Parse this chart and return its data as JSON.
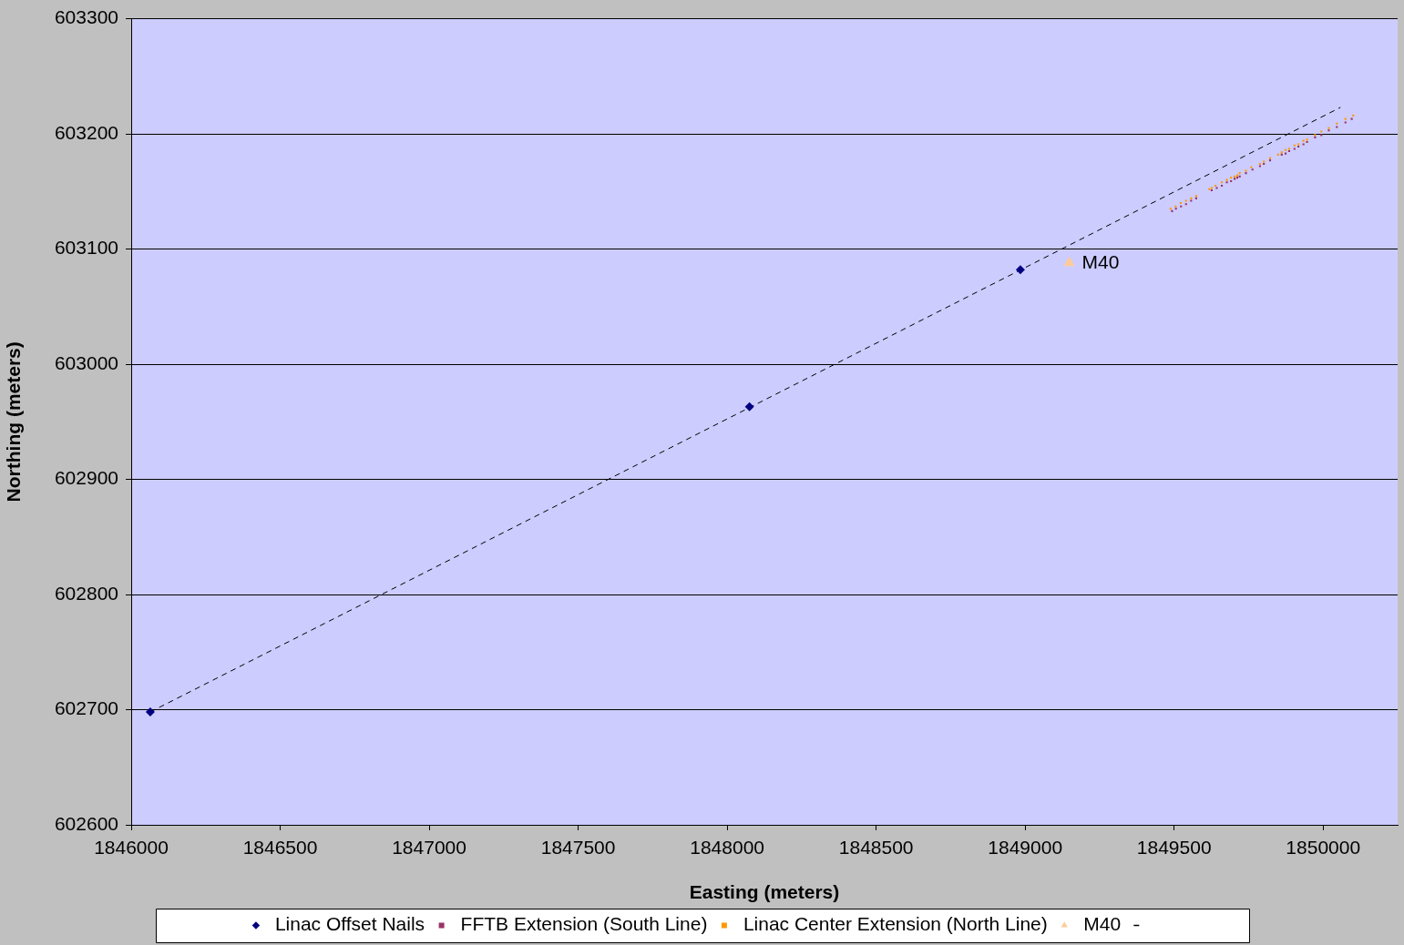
{
  "chart_data": {
    "type": "scatter",
    "xlabel": "Easting (meters)",
    "ylabel": "Northing (meters)",
    "xlim": [
      1846000,
      1850250
    ],
    "xticks": [
      1846000,
      1846500,
      1847000,
      1847500,
      1848000,
      1848500,
      1849000,
      1849500,
      1850000
    ],
    "ylim": [
      602600,
      603300
    ],
    "yticks": [
      602600,
      602700,
      602800,
      602900,
      603000,
      603100,
      603200,
      603300
    ],
    "grid": "y",
    "legend": "bottom",
    "series": [
      {
        "name": "Linac Offset Nails",
        "color": "#000080",
        "marker": "diamond",
        "x": [
          1846064,
          1848075,
          1848984
        ],
        "values": [
          602698,
          602963,
          603082
        ]
      },
      {
        "name": "FFTB Extension (South Line)",
        "color": "#993366",
        "marker": "square",
        "x": [
          1849493,
          1849506,
          1849523,
          1849540,
          1849557,
          1849574,
          1849626,
          1849643,
          1849660,
          1849677,
          1849691,
          1849703,
          1849712,
          1849720,
          1849741,
          1849763,
          1849788,
          1849801,
          1849822,
          1849861,
          1849874,
          1849886,
          1849904,
          1849917,
          1849934,
          1849946,
          1849973,
          1849994,
          1850019,
          1850046,
          1850075,
          1850096
        ],
        "values": [
          603133,
          603135,
          603137,
          603139,
          603142,
          603144,
          603151,
          603153,
          603155,
          603158,
          603159,
          603161,
          603162,
          603163,
          603166,
          603169,
          603172,
          603174,
          603177,
          603182,
          603183,
          603185,
          603187,
          603189,
          603191,
          603193,
          603197,
          603199,
          603203,
          603206,
          603210,
          603213
        ]
      },
      {
        "name": "Linac Center Extension (North Line)",
        "color": "#ff9900",
        "marker": "square",
        "x": [
          1849488,
          1849505,
          1849522,
          1849540,
          1849557,
          1849574,
          1849618,
          1849626,
          1849639,
          1849660,
          1849677,
          1849691,
          1849703,
          1849712,
          1849720,
          1849741,
          1849759,
          1849788,
          1849801,
          1849822,
          1849849,
          1849861,
          1849874,
          1849886,
          1849904,
          1849917,
          1849934,
          1849946,
          1849973,
          1849994,
          1850019,
          1850046,
          1850075,
          1850101
        ],
        "values": [
          603135,
          603137,
          603140,
          603142,
          603144,
          603146,
          603152,
          603153,
          603155,
          603158,
          603160,
          603162,
          603163,
          603164,
          603166,
          603168,
          603171,
          603174,
          603176,
          603179,
          603182,
          603184,
          603186,
          603187,
          603190,
          603191,
          603194,
          603195,
          603199,
          603202,
          603205,
          603209,
          603213,
          603216
        ]
      },
      {
        "name": "M40",
        "color": "#ffcc99",
        "marker": "triangle",
        "x": [
          1849148
        ],
        "values": [
          603088
        ]
      },
      {
        "type": "line",
        "color": "#000000",
        "marker": "none",
        "line_style": "dashed",
        "x": [
          1846064,
          1850058
        ],
        "values": [
          602698,
          603223
        ]
      }
    ],
    "annotations": [
      {
        "text": "M40",
        "x": 1849148,
        "y": 603088
      }
    ]
  }
}
